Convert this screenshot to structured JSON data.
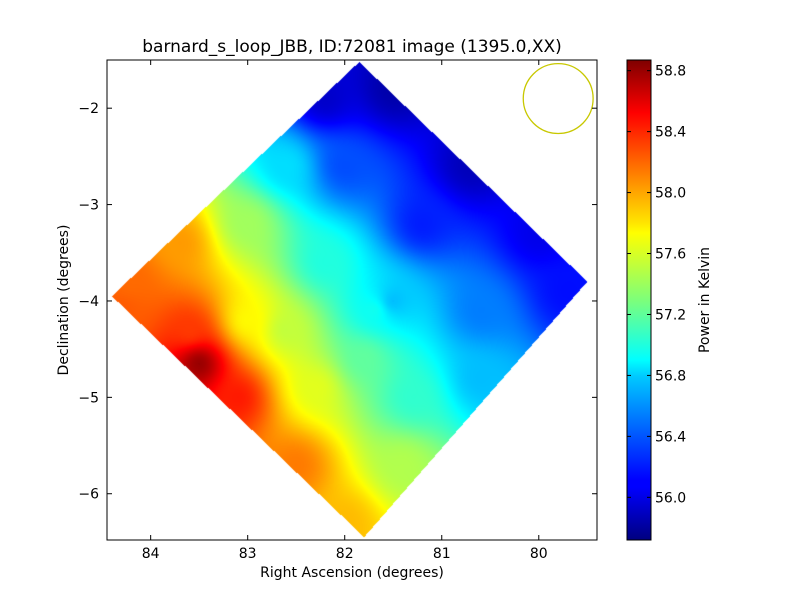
{
  "chart_data": {
    "type": "heatmap",
    "title": "barnard_s_loop_JBB, ID:72081 image (1395.0,XX)",
    "xlabel": "Right Ascension (degrees)",
    "ylabel": "Declination (degrees)",
    "xlim": [
      84.45,
      79.4
    ],
    "ylim": [
      -6.48,
      -1.5
    ],
    "x_ticks": [
      {
        "value": 84,
        "label": "84"
      },
      {
        "value": 83,
        "label": "83"
      },
      {
        "value": 82,
        "label": "82"
      },
      {
        "value": 81,
        "label": "81"
      },
      {
        "value": 80,
        "label": "80"
      }
    ],
    "y_ticks": [
      {
        "value": -2,
        "label": "−2"
      },
      {
        "value": -3,
        "label": "−3"
      },
      {
        "value": -4,
        "label": "−4"
      },
      {
        "value": -5,
        "label": "−5"
      },
      {
        "value": -6,
        "label": "−6"
      }
    ],
    "map_footprint": {
      "shape": "rotated-square",
      "vertices": [
        {
          "ra": 81.85,
          "dec": -1.52
        },
        {
          "ra": 79.5,
          "dec": -3.8
        },
        {
          "ra": 81.8,
          "dec": -6.45
        },
        {
          "ra": 84.4,
          "dec": -3.95
        }
      ]
    },
    "beam_circle": {
      "ra": 79.8,
      "dec": -1.9,
      "radius_deg": 0.36,
      "color": "#c8c800"
    },
    "anchors": [
      {
        "ra": 82.2,
        "dec": -1.9,
        "value": 55.95
      },
      {
        "ra": 81.5,
        "dec": -1.8,
        "value": 55.85
      },
      {
        "ra": 80.7,
        "dec": -2.6,
        "value": 55.9
      },
      {
        "ra": 80.0,
        "dec": -3.3,
        "value": 56.05
      },
      {
        "ra": 79.7,
        "dec": -3.9,
        "value": 56.15
      },
      {
        "ra": 81.2,
        "dec": -3.2,
        "value": 56.2
      },
      {
        "ra": 82.0,
        "dec": -2.6,
        "value": 56.35
      },
      {
        "ra": 82.6,
        "dec": -2.6,
        "value": 56.8
      },
      {
        "ra": 80.6,
        "dec": -4.1,
        "value": 56.5
      },
      {
        "ra": 81.5,
        "dec": -4.0,
        "value": 56.7
      },
      {
        "ra": 82.2,
        "dec": -3.6,
        "value": 57.0
      },
      {
        "ra": 83.0,
        "dec": -3.2,
        "value": 57.4
      },
      {
        "ra": 83.7,
        "dec": -3.4,
        "value": 58.0
      },
      {
        "ra": 84.2,
        "dec": -3.8,
        "value": 58.15
      },
      {
        "ra": 84.3,
        "dec": -4.1,
        "value": 58.2
      },
      {
        "ra": 83.6,
        "dec": -4.3,
        "value": 58.3
      },
      {
        "ra": 83.5,
        "dec": -4.65,
        "value": 58.8
      },
      {
        "ra": 83.1,
        "dec": -5.0,
        "value": 58.4
      },
      {
        "ra": 82.5,
        "dec": -5.7,
        "value": 58.1
      },
      {
        "ra": 82.0,
        "dec": -6.3,
        "value": 57.9
      },
      {
        "ra": 82.6,
        "dec": -4.3,
        "value": 57.5
      },
      {
        "ra": 81.8,
        "dec": -4.6,
        "value": 57.2
      },
      {
        "ra": 81.3,
        "dec": -5.0,
        "value": 57.05
      },
      {
        "ra": 80.6,
        "dec": -4.8,
        "value": 56.7
      },
      {
        "ra": 81.4,
        "dec": -5.7,
        "value": 57.45
      },
      {
        "ra": 82.3,
        "dec": -4.9,
        "value": 57.6
      },
      {
        "ra": 81.7,
        "dec": -4.1,
        "value": 56.95
      },
      {
        "ra": 83.0,
        "dec": -4.2,
        "value": 57.7
      }
    ],
    "colorbar": {
      "label": "Power in Kelvin",
      "vmin": 55.72,
      "vmax": 58.87,
      "colormap": "jet",
      "ticks": [
        {
          "value": 56.0,
          "label": "56.0"
        },
        {
          "value": 56.4,
          "label": "56.4"
        },
        {
          "value": 56.8,
          "label": "56.8"
        },
        {
          "value": 57.2,
          "label": "57.2"
        },
        {
          "value": 57.6,
          "label": "57.6"
        },
        {
          "value": 58.0,
          "label": "58.0"
        },
        {
          "value": 58.4,
          "label": "58.4"
        },
        {
          "value": 58.8,
          "label": "58.8"
        }
      ]
    },
    "grid": false,
    "legend": "none"
  }
}
